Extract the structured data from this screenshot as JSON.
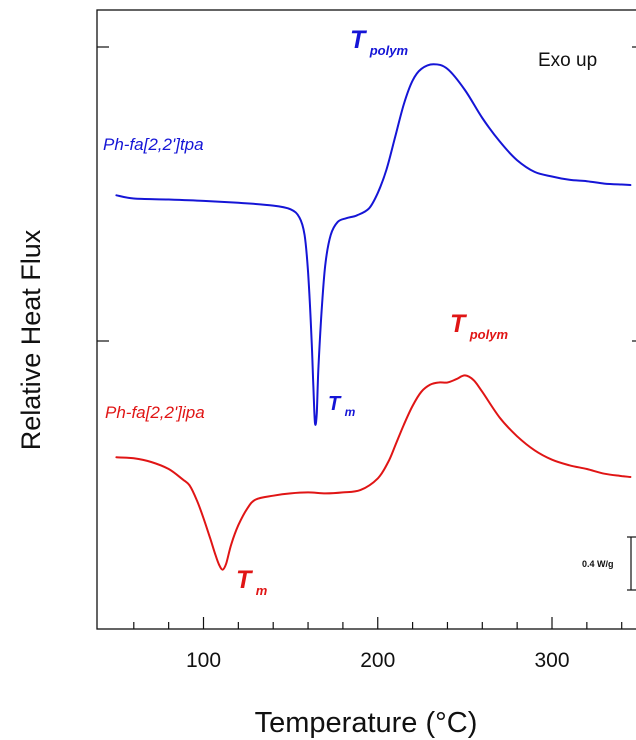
{
  "chart_data": {
    "type": "line",
    "xlabel": "Temperature (°C)",
    "ylabel": "Relative Heat Flux",
    "xlim": [
      25,
      345
    ],
    "x_major_ticks": [
      100,
      200,
      300
    ],
    "x_minor_step": 20,
    "y_ticks": [
      "top",
      "middle"
    ],
    "note": "Exo up",
    "grid": false,
    "scale_bar_label": "0.4 W/g",
    "series": [
      {
        "name": "Ph-fa[2,2']tpa",
        "color": "#1515d6",
        "peak_labels": [
          {
            "main": "T",
            "sub": "polym"
          },
          {
            "main": "T",
            "sub": "m"
          }
        ],
        "points": [
          [
            50,
            0.805
          ],
          [
            60,
            0.798
          ],
          [
            80,
            0.796
          ],
          [
            100,
            0.793
          ],
          [
            120,
            0.789
          ],
          [
            140,
            0.783
          ],
          [
            150,
            0.775
          ],
          [
            155,
            0.758
          ],
          [
            158,
            0.72
          ],
          [
            160,
            0.64
          ],
          [
            162,
            0.5
          ],
          [
            163,
            0.4
          ],
          [
            164,
            0.318
          ],
          [
            165,
            0.34
          ],
          [
            166,
            0.44
          ],
          [
            168,
            0.57
          ],
          [
            170,
            0.66
          ],
          [
            173,
            0.72
          ],
          [
            177,
            0.748
          ],
          [
            182,
            0.756
          ],
          [
            188,
            0.762
          ],
          [
            195,
            0.777
          ],
          [
            200,
            0.81
          ],
          [
            205,
            0.86
          ],
          [
            210,
            0.93
          ],
          [
            215,
            1.0
          ],
          [
            220,
            1.05
          ],
          [
            225,
            1.075
          ],
          [
            232,
            1.085
          ],
          [
            240,
            1.075
          ],
          [
            250,
            1.03
          ],
          [
            260,
            0.97
          ],
          [
            270,
            0.92
          ],
          [
            280,
            0.88
          ],
          [
            290,
            0.855
          ],
          [
            300,
            0.845
          ],
          [
            310,
            0.838
          ],
          [
            320,
            0.835
          ],
          [
            330,
            0.83
          ],
          [
            340,
            0.828
          ],
          [
            345,
            0.827
          ]
        ]
      },
      {
        "name": "Ph-fa[2,2']ipa",
        "color": "#e01515",
        "peak_labels": [
          {
            "main": "T",
            "sub": "polym"
          },
          {
            "main": "T",
            "sub": "m"
          }
        ],
        "points": [
          [
            50,
            0.245
          ],
          [
            60,
            0.243
          ],
          [
            70,
            0.235
          ],
          [
            80,
            0.22
          ],
          [
            88,
            0.198
          ],
          [
            92,
            0.185
          ],
          [
            96,
            0.155
          ],
          [
            100,
            0.115
          ],
          [
            104,
            0.07
          ],
          [
            107,
            0.035
          ],
          [
            109,
            0.015
          ],
          [
            111,
            0.005
          ],
          [
            113,
            0.018
          ],
          [
            116,
            0.06
          ],
          [
            120,
            0.1
          ],
          [
            125,
            0.135
          ],
          [
            130,
            0.155
          ],
          [
            140,
            0.163
          ],
          [
            150,
            0.168
          ],
          [
            160,
            0.17
          ],
          [
            170,
            0.168
          ],
          [
            180,
            0.17
          ],
          [
            190,
            0.175
          ],
          [
            200,
            0.2
          ],
          [
            206,
            0.235
          ],
          [
            210,
            0.27
          ],
          [
            215,
            0.315
          ],
          [
            220,
            0.355
          ],
          [
            225,
            0.385
          ],
          [
            230,
            0.4
          ],
          [
            235,
            0.405
          ],
          [
            240,
            0.405
          ],
          [
            245,
            0.412
          ],
          [
            250,
            0.42
          ],
          [
            255,
            0.41
          ],
          [
            260,
            0.385
          ],
          [
            270,
            0.33
          ],
          [
            280,
            0.29
          ],
          [
            290,
            0.26
          ],
          [
            300,
            0.24
          ],
          [
            310,
            0.228
          ],
          [
            320,
            0.22
          ],
          [
            330,
            0.21
          ],
          [
            340,
            0.205
          ],
          [
            345,
            0.203
          ]
        ]
      }
    ]
  }
}
